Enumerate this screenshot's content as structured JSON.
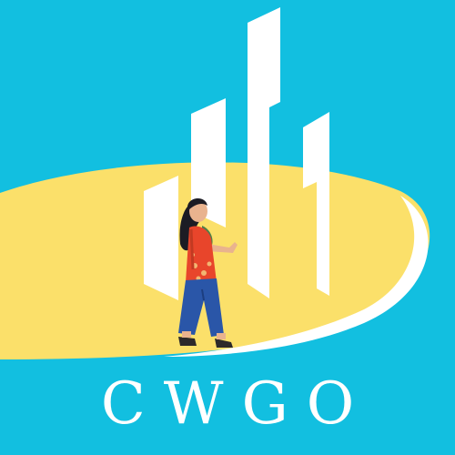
{
  "logo": {
    "wordmark": "CWGO"
  },
  "colors": {
    "background": "#12bfe0",
    "platform": "#fbe06a",
    "buildings": "#ffffff",
    "shirt": "#e8452b",
    "jeans": "#2a56a8",
    "skin": "#e9b38e",
    "hair": "#1c1c24",
    "sleeve": "#4f7f4a"
  },
  "icons": {
    "scene": "walking-person-city-icon"
  }
}
